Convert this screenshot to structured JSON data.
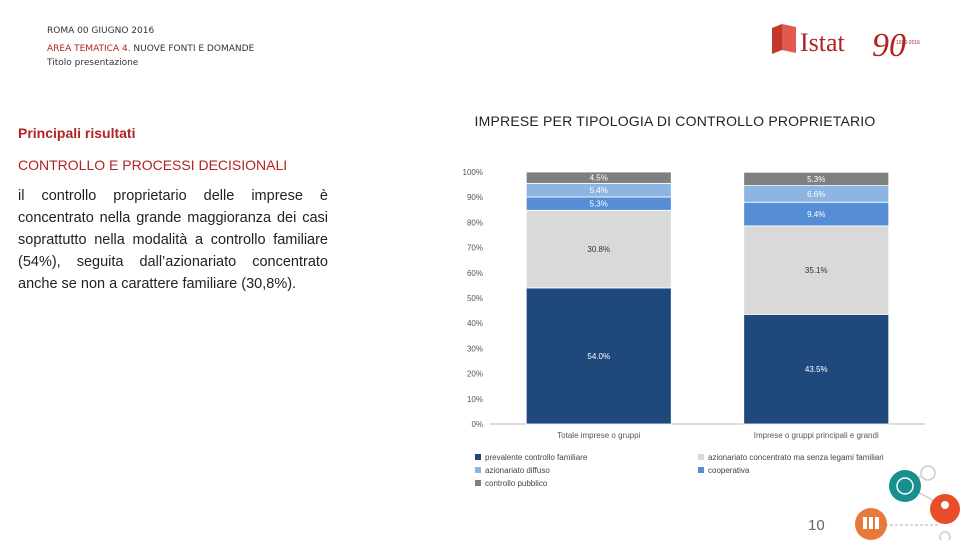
{
  "header": {
    "line1": "ROMA 00 GIUGNO 2016",
    "line2_prefix": "AREA TEMATICA 4.",
    "line2_rest": " NUOVE FONTI E DOMANDE",
    "line3": "Titolo presentazione"
  },
  "logo": {
    "text": "Istat",
    "anniversary": "90",
    "years": "1926-2016"
  },
  "left": {
    "subtitle": "Principali risultati",
    "section": "CONTROLLO E PROCESSI DECISIONALI",
    "body": "il controllo proprietario delle imprese è concentrato nella grande maggioranza dei casi soprattutto nella modalità a controllo familiare (54%), seguita dall’azionariato concentrato anche se non a carattere familiare (30,8%)."
  },
  "page_number": "10",
  "colors": {
    "accent": "#b22222"
  },
  "chart_data": {
    "type": "bar",
    "stacked": true,
    "title": "IMPRESE PER TIPOLOGIA DI CONTROLLO PROPRIETARIO",
    "categories": [
      "Totale imprese o gruppi",
      "Imprese o gruppi principali e grandi"
    ],
    "ylim": [
      0,
      100
    ],
    "yticks": [
      "0%",
      "10%",
      "20%",
      "30%",
      "40%",
      "50%",
      "60%",
      "70%",
      "80%",
      "90%",
      "100%"
    ],
    "series": [
      {
        "name": "prevalente controllo familiare",
        "color": "#1f497d",
        "values": [
          54.0,
          43.5
        ],
        "labels": [
          "54.0%",
          "43.5%"
        ],
        "label_color": "#ffffff"
      },
      {
        "name": "azionariato concentrato ma senza legami familiari",
        "color": "#d9d9d9",
        "values": [
          30.8,
          35.1
        ],
        "labels": [
          "30.8%",
          "35.1%"
        ],
        "label_color": "#333333"
      },
      {
        "name": "cooperativa",
        "color": "#558ed5",
        "values": [
          5.3,
          9.4
        ],
        "labels": [
          "5.3%",
          "9.4%"
        ],
        "label_color": "#ffffff"
      },
      {
        "name": "azionariato diffuso",
        "color": "#8eb4e3",
        "values": [
          5.4,
          6.6
        ],
        "labels": [
          "5.4%",
          "6.6%"
        ],
        "label_color": "#ffffff"
      },
      {
        "name": "controllo pubblico",
        "color": "#7f7f7f",
        "values": [
          4.5,
          5.3
        ],
        "labels": [
          "4.5%",
          "5.3%"
        ],
        "label_color": "#ffffff"
      }
    ],
    "legend_order": [
      "prevalente controllo familiare",
      "azionariato concentrato ma senza legami familiari",
      "azionariato diffuso",
      "cooperativa",
      "controllo pubblico"
    ],
    "grid": false,
    "legend": "bottom"
  }
}
